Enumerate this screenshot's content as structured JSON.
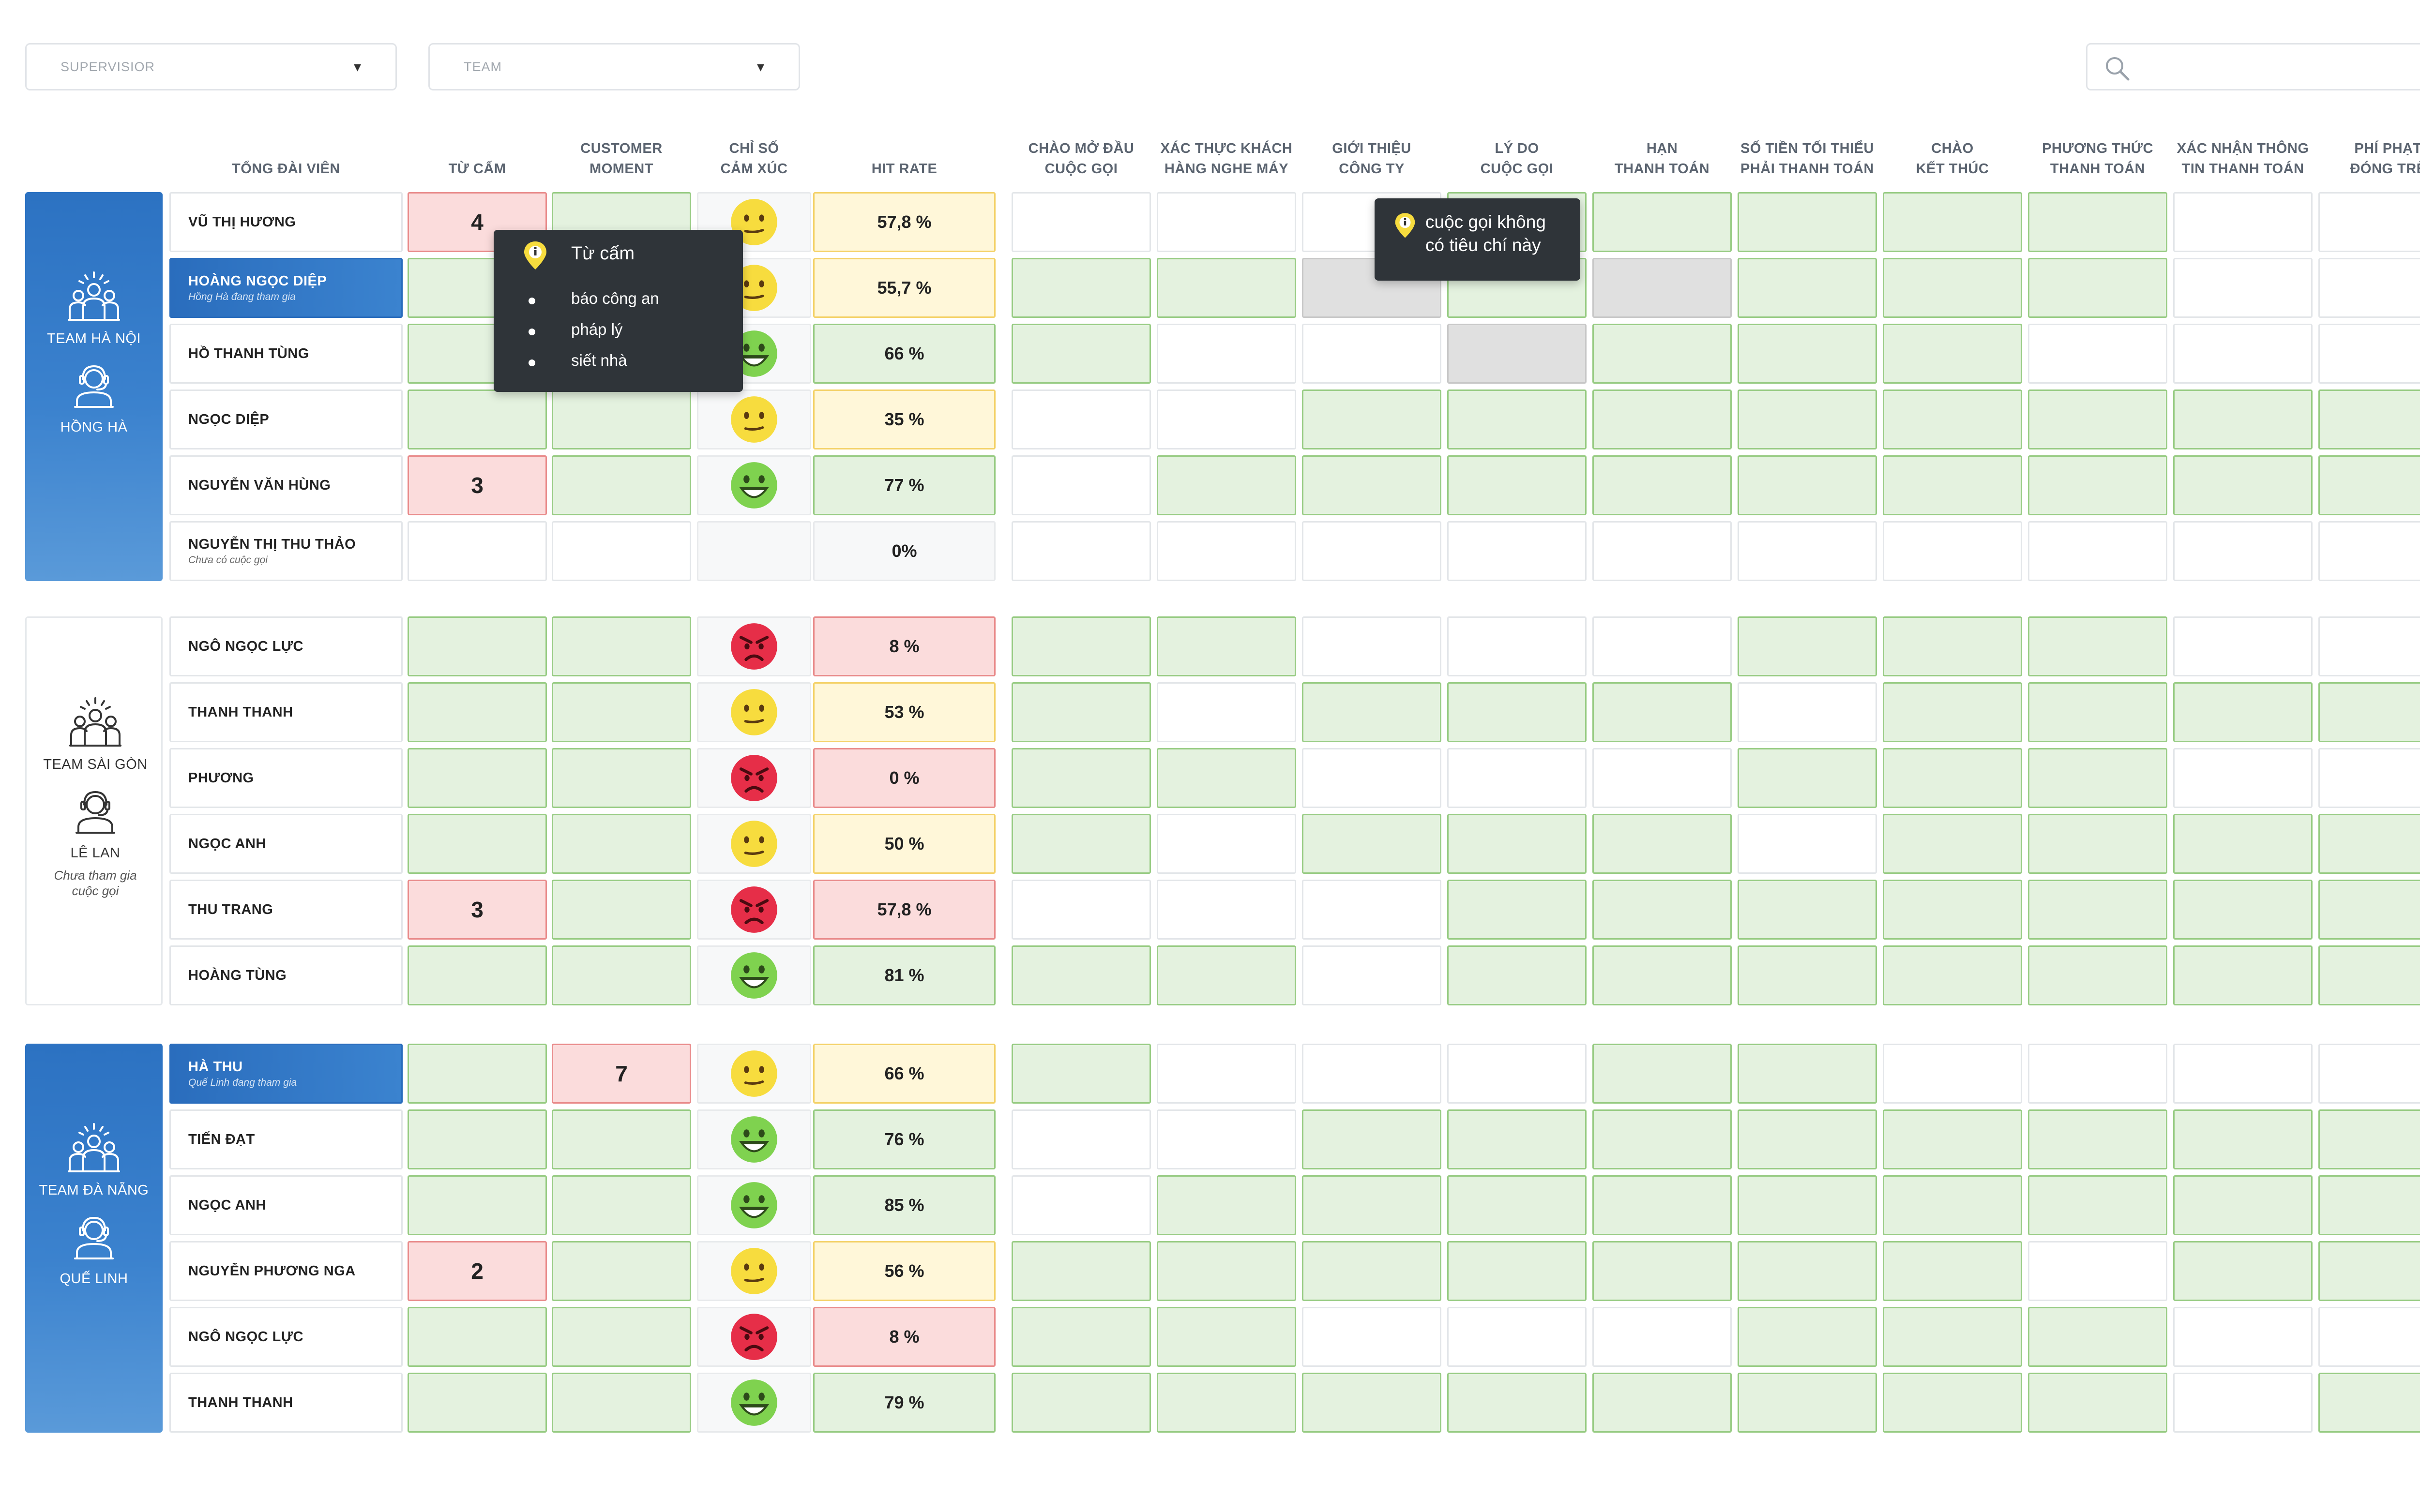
{
  "filters": {
    "supervisor": {
      "label": "SUPERVISIOR",
      "arrow": "▾"
    },
    "team": {
      "label": "TEAM",
      "arrow": "▾"
    },
    "search": {
      "value": "",
      "placeholder": ""
    }
  },
  "columns": [
    "TỔNG ĐÀI VIÊN",
    "TỪ CẤM",
    "CUSTOMER\nMOMENT",
    "CHỈ SỐ\nCẢM XÚC",
    "HIT RATE",
    "CHÀO MỞ ĐẦU\nCUỘC GỌI",
    "XÁC THỰC KHÁCH\nHÀNG NGHE MÁY",
    "GIỚI THIỆU\nCÔNG TY",
    "LÝ DO\nCUỘC GỌI",
    "HẠN\nTHANH TOÁN",
    "SỐ TIỀN TỐI THIỂU\nPHẢI THANH TOÁN",
    "CHÀO\nKẾT THÚC",
    "PHƯƠNG THỨC\nTHANH TOÁN",
    "XÁC NHẬN THÔNG\nTIN THANH TOÁN",
    "PHÍ PHẠT\nĐÓNG TRỄ"
  ],
  "teams": [
    {
      "name": "TEAM HÀ NỘI",
      "supervisor": "HỒNG HÀ",
      "note": "",
      "style": "blue",
      "agents": [
        {
          "name": "VŨ THỊ HƯƠNG",
          "sub": "",
          "selected": false,
          "tu_cam": "4",
          "tu_cam_style": "red",
          "cm": "",
          "cm_style": "green",
          "emotion": "neutral",
          "emotion_style": "light",
          "hit": "57,8 %",
          "hit_style": "yellow",
          "criteria": [
            "w",
            "w",
            "w",
            "g",
            "g",
            "g",
            "g",
            "g",
            "w",
            "w"
          ]
        },
        {
          "name": "HOÀNG NGỌC DIỆP",
          "sub": "Hồng Hà đang tham gia",
          "selected": true,
          "tu_cam": "",
          "tu_cam_style": "green",
          "cm": "",
          "cm_style": "green",
          "emotion": "neutral",
          "emotion_style": "light",
          "hit": "55,7 %",
          "hit_style": "yellow",
          "criteria": [
            "g",
            "g",
            "x",
            "g",
            "x",
            "g",
            "g",
            "g",
            "w",
            "w"
          ]
        },
        {
          "name": "HỒ THANH TÙNG",
          "sub": "",
          "selected": false,
          "tu_cam": "",
          "tu_cam_style": "green",
          "cm": "",
          "cm_style": "green",
          "emotion": "happy",
          "emotion_style": "light",
          "hit": "66 %",
          "hit_style": "green",
          "criteria": [
            "g",
            "w",
            "w",
            "x",
            "g",
            "g",
            "g",
            "w",
            "w",
            "w"
          ]
        },
        {
          "name": "NGỌC DIỆP",
          "sub": "",
          "selected": false,
          "tu_cam": "",
          "tu_cam_style": "green",
          "cm": "",
          "cm_style": "green",
          "emotion": "neutral",
          "emotion_style": "light",
          "hit": "35 %",
          "hit_style": "yellow",
          "criteria": [
            "w",
            "w",
            "g",
            "g",
            "g",
            "g",
            "g",
            "g",
            "g",
            "g"
          ]
        },
        {
          "name": "NGUYỄN VĂN HÙNG",
          "sub": "",
          "selected": false,
          "tu_cam": "3",
          "tu_cam_style": "red",
          "cm": "",
          "cm_style": "green",
          "emotion": "happy",
          "emotion_style": "light",
          "hit": "77 %",
          "hit_style": "green",
          "criteria": [
            "w",
            "g",
            "g",
            "g",
            "g",
            "g",
            "g",
            "g",
            "g",
            "g"
          ]
        },
        {
          "name": "NGUYỄN THỊ THU THẢO",
          "sub": "Chưa có cuộc gọi",
          "selected": false,
          "tu_cam": "",
          "tu_cam_style": "white",
          "cm": "",
          "cm_style": "white",
          "emotion": "",
          "emotion_style": "light",
          "hit": "0%",
          "hit_style": "light",
          "criteria": [
            "w",
            "w",
            "w",
            "w",
            "w",
            "w",
            "w",
            "w",
            "w",
            "w"
          ]
        }
      ]
    },
    {
      "name": "TEAM SÀI GÒN",
      "supervisor": "LÊ LAN",
      "note": "Chưa tham gia\ncuộc gọi",
      "style": "white",
      "agents": [
        {
          "name": "NGÔ NGỌC LỰC",
          "sub": "",
          "selected": false,
          "tu_cam": "",
          "tu_cam_style": "green",
          "cm": "",
          "cm_style": "green",
          "emotion": "angry",
          "emotion_style": "light",
          "hit": "8 %",
          "hit_style": "red",
          "criteria": [
            "g",
            "g",
            "w",
            "w",
            "w",
            "g",
            "g",
            "g",
            "w",
            "w"
          ]
        },
        {
          "name": "THANH THANH",
          "sub": "",
          "selected": false,
          "tu_cam": "",
          "tu_cam_style": "green",
          "cm": "",
          "cm_style": "green",
          "emotion": "neutral",
          "emotion_style": "light",
          "hit": "53 %",
          "hit_style": "yellow",
          "criteria": [
            "g",
            "w",
            "g",
            "g",
            "g",
            "w",
            "g",
            "g",
            "g",
            "g"
          ]
        },
        {
          "name": "PHƯƠNG",
          "sub": "",
          "selected": false,
          "tu_cam": "",
          "tu_cam_style": "green",
          "cm": "",
          "cm_style": "green",
          "emotion": "angry",
          "emotion_style": "light",
          "hit": "0 %",
          "hit_style": "red",
          "criteria": [
            "g",
            "g",
            "w",
            "w",
            "w",
            "g",
            "g",
            "g",
            "w",
            "w"
          ]
        },
        {
          "name": "NGỌC ANH",
          "sub": "",
          "selected": false,
          "tu_cam": "",
          "tu_cam_style": "green",
          "cm": "",
          "cm_style": "green",
          "emotion": "neutral",
          "emotion_style": "light",
          "hit": "50 %",
          "hit_style": "yellow",
          "criteria": [
            "g",
            "w",
            "g",
            "g",
            "g",
            "w",
            "g",
            "g",
            "g",
            "g"
          ]
        },
        {
          "name": "THU TRANG",
          "sub": "",
          "selected": false,
          "tu_cam": "3",
          "tu_cam_style": "red",
          "cm": "",
          "cm_style": "green",
          "emotion": "angry",
          "emotion_style": "light",
          "hit": "57,8 %",
          "hit_style": "red",
          "criteria": [
            "w",
            "w",
            "w",
            "g",
            "g",
            "g",
            "g",
            "g",
            "g",
            "g"
          ]
        },
        {
          "name": "HOÀNG TÙNG",
          "sub": "",
          "selected": false,
          "tu_cam": "",
          "tu_cam_style": "green",
          "cm": "",
          "cm_style": "green",
          "emotion": "happy",
          "emotion_style": "light",
          "hit": "81 %",
          "hit_style": "green",
          "criteria": [
            "g",
            "g",
            "w",
            "g",
            "g",
            "g",
            "g",
            "g",
            "g",
            "g"
          ]
        }
      ]
    },
    {
      "name": "TEAM ĐÀ NẴNG",
      "supervisor": "QUẾ LINH",
      "note": "",
      "style": "blue",
      "agents": [
        {
          "name": "HÀ THU",
          "sub": "Quế Linh đang tham gia",
          "selected": true,
          "tu_cam": "",
          "tu_cam_style": "green",
          "cm": "7",
          "cm_style": "red",
          "emotion": "neutral",
          "emotion_style": "light",
          "hit": "66 %",
          "hit_style": "yellow",
          "criteria": [
            "g",
            "w",
            "w",
            "w",
            "g",
            "g",
            "w",
            "w",
            "w",
            "w"
          ]
        },
        {
          "name": "TIẾN ĐẠT",
          "sub": "",
          "selected": false,
          "tu_cam": "",
          "tu_cam_style": "green",
          "cm": "",
          "cm_style": "green",
          "emotion": "happy",
          "emotion_style": "light",
          "hit": "76 %",
          "hit_style": "green",
          "criteria": [
            "w",
            "w",
            "g",
            "g",
            "g",
            "g",
            "g",
            "g",
            "g",
            "g"
          ]
        },
        {
          "name": "NGỌC  ANH",
          "sub": "",
          "selected": false,
          "tu_cam": "",
          "tu_cam_style": "green",
          "cm": "",
          "cm_style": "green",
          "emotion": "happy",
          "emotion_style": "light",
          "hit": "85 %",
          "hit_style": "green",
          "criteria": [
            "w",
            "g",
            "g",
            "g",
            "g",
            "g",
            "g",
            "g",
            "g",
            "g"
          ]
        },
        {
          "name": "NGUYỄN PHƯƠNG NGA",
          "sub": "",
          "selected": false,
          "tu_cam": "2",
          "tu_cam_style": "red",
          "cm": "",
          "cm_style": "green",
          "emotion": "neutral",
          "emotion_style": "light",
          "hit": "56 %",
          "hit_style": "yellow",
          "criteria": [
            "g",
            "g",
            "g",
            "g",
            "g",
            "g",
            "g",
            "w",
            "g",
            "g"
          ]
        },
        {
          "name": "NGÔ NGỌC LỰC",
          "sub": "",
          "selected": false,
          "tu_cam": "",
          "tu_cam_style": "green",
          "cm": "",
          "cm_style": "green",
          "emotion": "angry",
          "emotion_style": "light",
          "hit": "8 %",
          "hit_style": "red",
          "criteria": [
            "g",
            "g",
            "w",
            "w",
            "w",
            "g",
            "g",
            "g",
            "w",
            "w"
          ]
        },
        {
          "name": "THANH THANH",
          "sub": "",
          "selected": false,
          "tu_cam": "",
          "tu_cam_style": "green",
          "cm": "",
          "cm_style": "green",
          "emotion": "happy",
          "emotion_style": "light",
          "hit": "79 %",
          "hit_style": "green",
          "criteria": [
            "g",
            "g",
            "g",
            "g",
            "g",
            "g",
            "g",
            "g",
            "w",
            "g"
          ]
        }
      ]
    }
  ],
  "tooltips": {
    "tu_cam": {
      "title": "Từ cấm",
      "items": [
        "báo công an",
        "pháp lý",
        "siết nhà"
      ]
    },
    "criteria": {
      "line1": "cuộc gọi không",
      "line2": "có tiêu chí này"
    }
  },
  "icons": {
    "dropdown": "chevron-down-icon",
    "search": "search-icon",
    "team": "team-icon",
    "supervisor": "headset-agent-icon",
    "info": "info-icon"
  },
  "colors": {
    "blue": "#2c72c2",
    "green_fill": "#e4f2df",
    "green_border": "#98cc84",
    "red_fill": "#fbdcdc",
    "yellow_fill": "#fff7d9",
    "gray_fill": "#e0e0e0",
    "emoji_yellow": "#f7dc3e",
    "emoji_green": "#7fd24f",
    "emoji_red": "#e62e48"
  }
}
